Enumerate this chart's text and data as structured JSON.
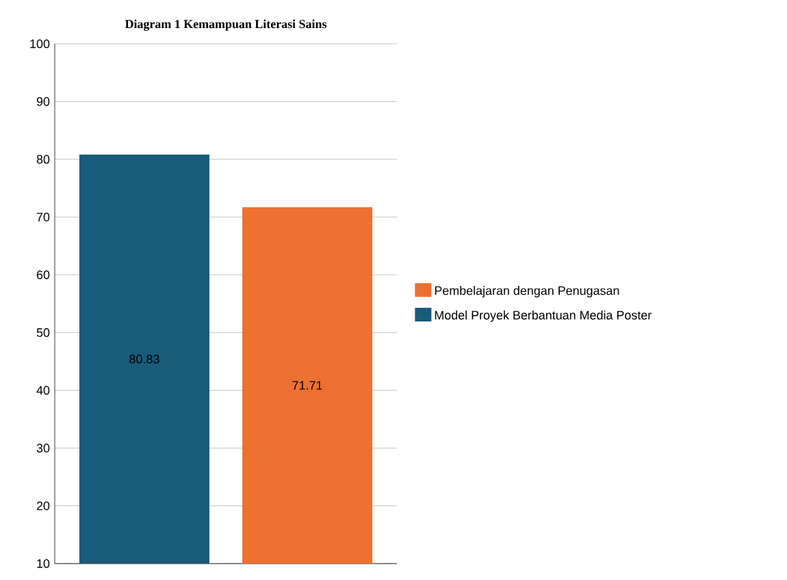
{
  "chart_data": {
    "type": "bar",
    "title": "Diagram  1 Kemampuan  Literasi Sains",
    "categories": [
      null,
      null
    ],
    "series": [
      {
        "name": "Pembelajaran dengan Penugasan",
        "color": "#ed7031",
        "values": [
          null,
          71.71
        ]
      },
      {
        "name": "Model Proyek Berbantuan Media Poster",
        "color": "#1a5a7a",
        "values": [
          80.83,
          null
        ]
      }
    ],
    "ylim": [
      10,
      100
    ],
    "yticks": [
      10,
      20,
      30,
      40,
      50,
      60,
      70,
      80,
      90,
      100
    ],
    "grid": "y",
    "legend": "right",
    "data_labels": true
  }
}
